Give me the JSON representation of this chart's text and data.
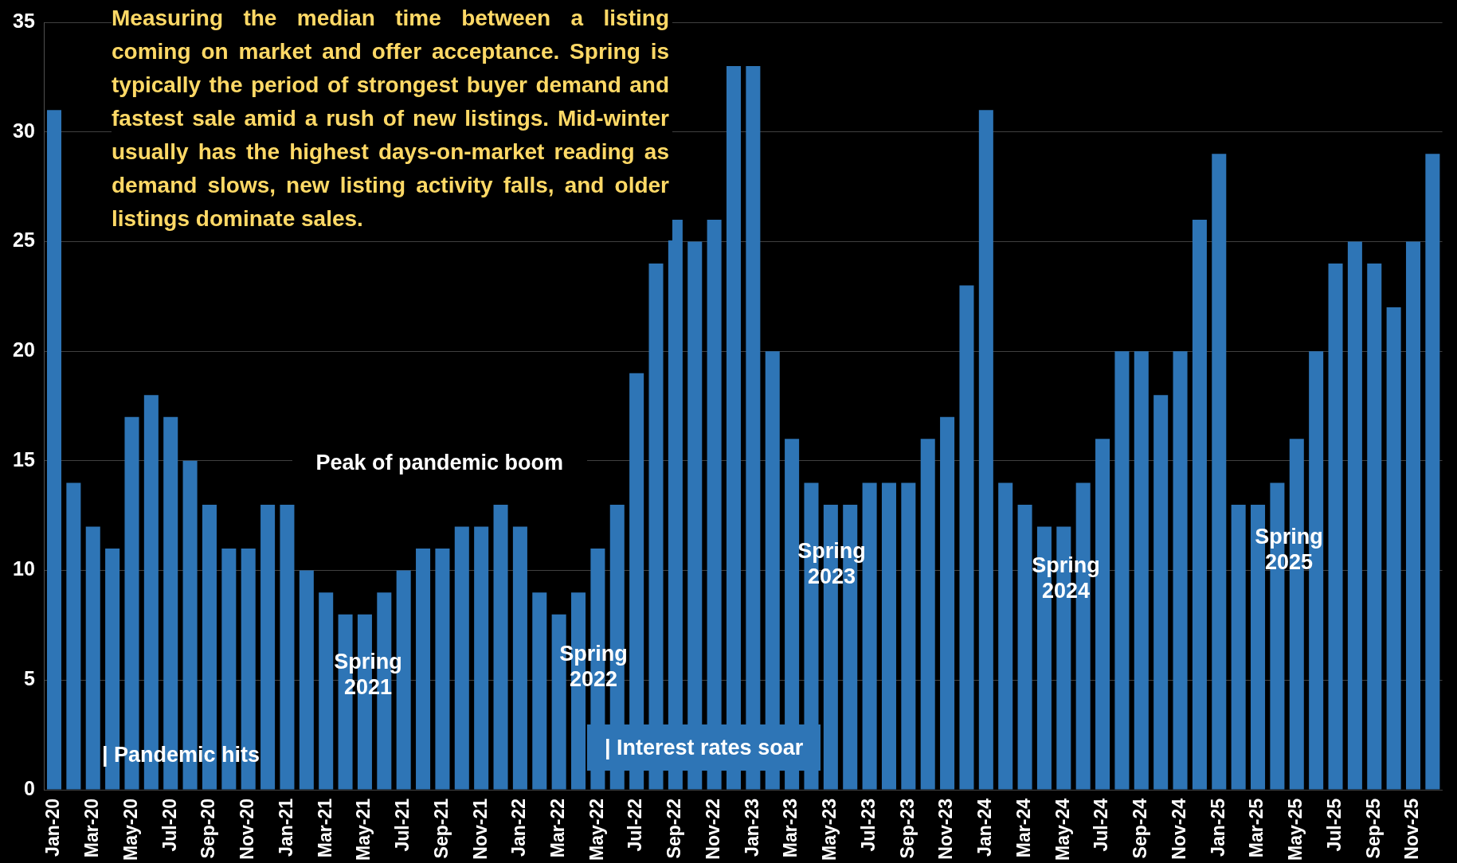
{
  "chart_data": {
    "type": "bar",
    "categories": [
      "Jan-20",
      null,
      "Mar-20",
      null,
      "May-20",
      null,
      "Jul-20",
      null,
      "Sep-20",
      null,
      "Nov-20",
      null,
      "Jan-21",
      null,
      "Mar-21",
      null,
      "May-21",
      null,
      "Jul-21",
      null,
      "Sep-21",
      null,
      "Nov-21",
      null,
      "Jan-22",
      null,
      "Mar-22",
      null,
      "May-22",
      null,
      "Jul-22",
      null,
      "Sep-22",
      null,
      "Nov-22",
      null,
      "Jan-23",
      null,
      "Mar-23",
      null,
      "May-23",
      null,
      "Jul-23",
      null,
      "Sep-23",
      null,
      "Nov-23",
      null,
      "Jan-24",
      null,
      "Mar-24",
      null,
      "May-24",
      null,
      "Jul-24",
      null,
      "Sep-24",
      null,
      "Nov-24",
      null,
      "Jan-25",
      null,
      "Mar-25",
      null,
      "May-25",
      null,
      "Jul-25",
      null,
      "Sep-25",
      null,
      "Nov-25",
      null
    ],
    "values": [
      31,
      14,
      12,
      11,
      17,
      18,
      17,
      15,
      13,
      11,
      11,
      13,
      13,
      10,
      9,
      8,
      8,
      9,
      10,
      11,
      11,
      12,
      12,
      13,
      12,
      9,
      8,
      9,
      11,
      13,
      19,
      24,
      26,
      25,
      26,
      33,
      33,
      20,
      16,
      14,
      13,
      13,
      14,
      14,
      14,
      16,
      17,
      23,
      31,
      14,
      13,
      12,
      12,
      14,
      16,
      20,
      20,
      18,
      20,
      26,
      29,
      13,
      13,
      14,
      16,
      20,
      24,
      25,
      24,
      22,
      25,
      29
    ],
    "color": "#2e75b6",
    "ylim": [
      0,
      35
    ],
    "yticks": [
      0,
      5,
      10,
      15,
      20,
      25,
      30,
      35
    ],
    "grid": "y",
    "annotations": [
      "Measuring the median time between a listing coming on market and offer acceptance. Spring is typically the period of strongest buyer demand and fastest sale amid a rush of new listings. Mid-winter usually has the highest days-on-market reading as demand slows, new listing activity falls, and older listings dominate sales.",
      "Peak of pandemic boom",
      "Spring 2021",
      "Spring 2022",
      "Spring 2023",
      "Spring 2024",
      "Spring 2025",
      "| Pandemic hits",
      "| Interest rates soar"
    ]
  }
}
